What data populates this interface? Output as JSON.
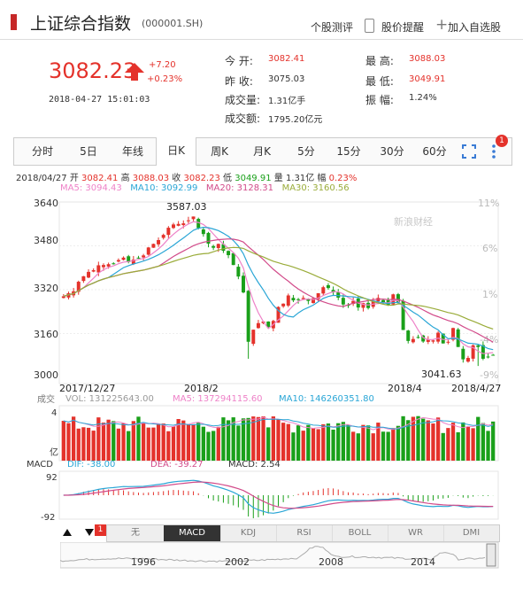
{
  "header": {
    "name": "上证综合指数",
    "code": "(000001.SH)",
    "links": [
      "个股测评",
      "股价提醒",
      "加入自选股"
    ]
  },
  "quote": {
    "price": "3082.23",
    "change_abs": "+7.20",
    "change_pct": "+0.23%",
    "timestamp": "2018-04-27  15:01:03",
    "fields": [
      {
        "label": "今  开:",
        "value": "3082.41",
        "color": "red"
      },
      {
        "label": "昨  收:",
        "value": "3075.03",
        "color": "normal"
      },
      {
        "label": "成交量:",
        "value": "1.31亿手",
        "color": "normal"
      },
      {
        "label": "成交额:",
        "value": "1795.20亿元",
        "color": "normal"
      },
      {
        "label": "最  高:",
        "value": "3088.03",
        "color": "red"
      },
      {
        "label": "最  低:",
        "value": "3049.91",
        "color": "red"
      },
      {
        "label": "振  幅:",
        "value": "1.24%",
        "color": "normal"
      }
    ]
  },
  "tabs": [
    "分时",
    "5日",
    "年线",
    "日K",
    "周K",
    "月K",
    "5分",
    "15分",
    "30分",
    "60分"
  ],
  "active_tab": "日K",
  "badge": "1",
  "info_line": {
    "date": "2018/04/27",
    "open_label": "开",
    "open": "3082.41",
    "high_label": "高",
    "high": "3088.03",
    "close_label": "收",
    "close": "3082.23",
    "low_label": "低",
    "low": "3049.91",
    "vol_label": "量",
    "vol": "1.31亿",
    "amp_label": "幅",
    "amp": "0.23%"
  },
  "ma_legend": [
    {
      "label": "MA5: 3094.43",
      "color": "#ee82c8"
    },
    {
      "label": "MA10: 3092.99",
      "color": "#2aa6d6"
    },
    {
      "label": "MA20: 3128.31",
      "color": "#d24b8a"
    },
    {
      "label": "MA30: 3160.56",
      "color": "#9aac3a"
    }
  ],
  "price_axis": [
    "3640",
    "3480",
    "3320",
    "3160",
    "3000"
  ],
  "pct_axis": [
    "11%",
    "6%",
    "1%",
    "-4%",
    "-9%"
  ],
  "annotations": {
    "high": "3587.03",
    "low": "3041.63"
  },
  "watermark": "新浪财经",
  "date_axis": [
    "2017/12/27",
    "2018/2",
    "2018/4",
    "2018/4/27"
  ],
  "volume": {
    "title": "成交",
    "vol_label": "VOL: 131225643.00",
    "ma5_label": "MA5: 137294115.60",
    "ma10_label": "MA10: 146260351.80",
    "axis_top": "4",
    "axis_bottom": "亿"
  },
  "macd": {
    "title": "MACD",
    "dif": "DIF: -38.00",
    "dea": "DEA: -39.27",
    "macd": "MACD: 2.54",
    "axis_top": "92",
    "axis_bottom": "-92"
  },
  "indicator_tabs": [
    "无",
    "MACD",
    "KDJ",
    "RSI",
    "BOLL",
    "WR",
    "DMI"
  ],
  "active_indicator": "MACD",
  "timeline_years": [
    "1996",
    "2002",
    "2008",
    "2014"
  ],
  "chart_data": {
    "type": "candlestick",
    "ylim": [
      3000,
      3640
    ],
    "high": 3587.03,
    "low": 3041.63,
    "closes": [
      3296,
      3307,
      3314,
      3349,
      3369,
      3385,
      3391,
      3409,
      3410,
      3413,
      3414,
      3428,
      3437,
      3421,
      3430,
      3436,
      3445,
      3474,
      3487,
      3501,
      3520,
      3546,
      3558,
      3560,
      3562,
      3573,
      3587,
      3545,
      3523,
      3488,
      3473,
      3487,
      3462,
      3446,
      3410,
      3368,
      3310,
      3130,
      3174,
      3198,
      3204,
      3184,
      3206,
      3257,
      3269,
      3299,
      3281,
      3282,
      3290,
      3279,
      3289,
      3307,
      3329,
      3326,
      3310,
      3291,
      3266,
      3263,
      3279,
      3255,
      3271,
      3253,
      3279,
      3290,
      3273,
      3263,
      3303,
      3271,
      3173,
      3133,
      3140,
      3147,
      3131,
      3138,
      3135,
      3163,
      3124,
      3130,
      3180,
      3111,
      3066,
      3071,
      3117,
      3111,
      3068,
      3075,
      3082
    ]
  }
}
